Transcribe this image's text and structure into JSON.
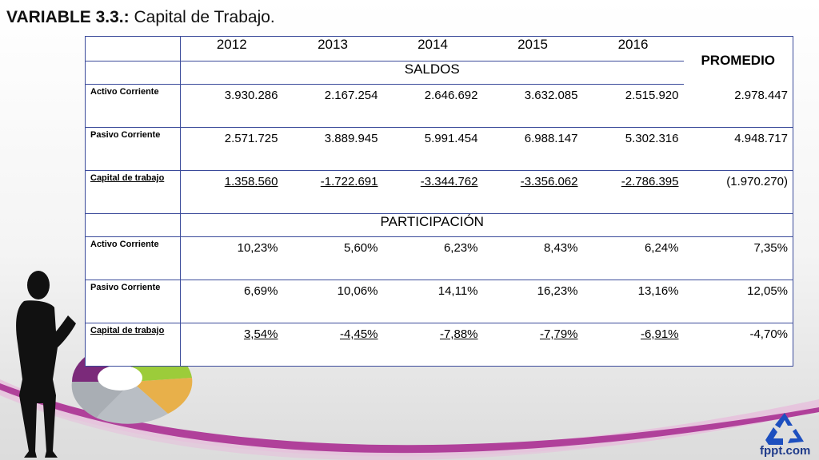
{
  "title": {
    "bold": "VARIABLE 3.3.:",
    "rest": " Capital de Trabajo."
  },
  "table": {
    "years": [
      "2012",
      "2013",
      "2014",
      "2015",
      "2016"
    ],
    "promedio": "PROMEDIO",
    "saldos": {
      "label": "SALDOS",
      "rows": [
        {
          "label": "Activo Corriente",
          "values": [
            "3.930.286",
            "2.167.254",
            "2.646.692",
            "3.632.085",
            "2.515.920",
            "2.978.447"
          ]
        },
        {
          "label": "Pasivo Corriente",
          "values": [
            "2.571.725",
            "3.889.945",
            "5.991.454",
            "6.988.147",
            "5.302.316",
            "4.948.717"
          ]
        },
        {
          "label": "Capital de trabajo",
          "values": [
            "1.358.560",
            "-1.722.691",
            "-3.344.762",
            "-3.356.062",
            "-2.786.395",
            "(1.970.270)"
          ]
        }
      ]
    },
    "participacion": {
      "label": "PARTICIPACIÓN",
      "rows": [
        {
          "label": "Activo Corriente",
          "values": [
            "10,23%",
            "5,60%",
            "6,23%",
            "8,43%",
            "6,24%",
            "7,35%"
          ]
        },
        {
          "label": "Pasivo Corriente",
          "values": [
            "6,69%",
            "10,06%",
            "14,11%",
            "16,23%",
            "13,16%",
            "12,05%"
          ]
        },
        {
          "label": "Capital de trabajo",
          "values": [
            "3,54%",
            "-4,45%",
            "-7,88%",
            "-7,79%",
            "-6,91%",
            "-4,70%"
          ]
        }
      ]
    }
  },
  "brand": "fppt.com",
  "icons": {
    "recycle": "recycle-icon",
    "figure": "businesswoman-silhouette",
    "donut": "donut-chart-graphic"
  },
  "colors": {
    "border": "#3a4a9a",
    "swoosh": "#b0409a",
    "brand": "#1e3a8a"
  }
}
